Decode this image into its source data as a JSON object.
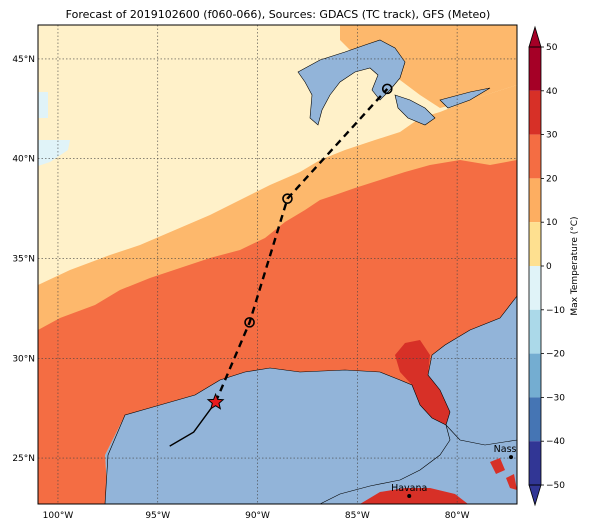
{
  "title": "Forecast of 2019102600 (f060-066), Sources: GDACS (TC track), GFS (Meteo)",
  "map": {
    "lon_range": [
      -101,
      -77
    ],
    "lat_range": [
      22.7,
      46.7
    ],
    "lon_ticks": [
      {
        "value": -100,
        "label": "100°W"
      },
      {
        "value": -95,
        "label": "95°W"
      },
      {
        "value": -90,
        "label": "90°W"
      },
      {
        "value": -85,
        "label": "85°W"
      },
      {
        "value": -80,
        "label": "80°W"
      }
    ],
    "lat_ticks": [
      {
        "value": 25,
        "label": "25°N"
      },
      {
        "value": 30,
        "label": "30°N"
      },
      {
        "value": 35,
        "label": "35°N"
      },
      {
        "value": 40,
        "label": "40°N"
      },
      {
        "value": 45,
        "label": "45°N"
      }
    ],
    "gridlines": true,
    "ocean_color": "#92b4d9",
    "cities": [
      {
        "name": "Nassau",
        "lon": -77.3,
        "lat": 25.05
      },
      {
        "name": "Havana",
        "lon": -82.4,
        "lat": 23.1
      }
    ]
  },
  "colorbar": {
    "label": "Max Temperature (°C)",
    "ticks": [
      "−50",
      "−40",
      "−30",
      "−20",
      "−10",
      "0",
      "10",
      "20",
      "30",
      "40",
      "50"
    ],
    "levels": [
      -50,
      -40,
      -30,
      -20,
      -10,
      0,
      10,
      20,
      30,
      40,
      50
    ],
    "colors": [
      "#313695",
      "#4575b4",
      "#74add1",
      "#abd9e9",
      "#e0f3f8",
      "#fee090",
      "#fdae61",
      "#f46d43",
      "#d73027",
      "#a50026"
    ],
    "extend": "both"
  },
  "track": {
    "observed": [
      {
        "lon": -94.4,
        "lat": 25.6
      },
      {
        "lon": -93.2,
        "lat": 26.3
      },
      {
        "lon": -92.1,
        "lat": 27.8
      }
    ],
    "forecast": [
      {
        "lon": -92.1,
        "lat": 27.8
      },
      {
        "lon": -90.4,
        "lat": 31.8
      },
      {
        "lon": -88.5,
        "lat": 38.0
      },
      {
        "lon": -83.5,
        "lat": 43.5
      }
    ],
    "current_position": {
      "lon": -92.1,
      "lat": 27.8
    },
    "forecast_points": [
      {
        "lon": -90.4,
        "lat": 31.8
      },
      {
        "lon": -88.5,
        "lat": 38.0
      },
      {
        "lon": -83.5,
        "lat": 43.5
      }
    ]
  }
}
